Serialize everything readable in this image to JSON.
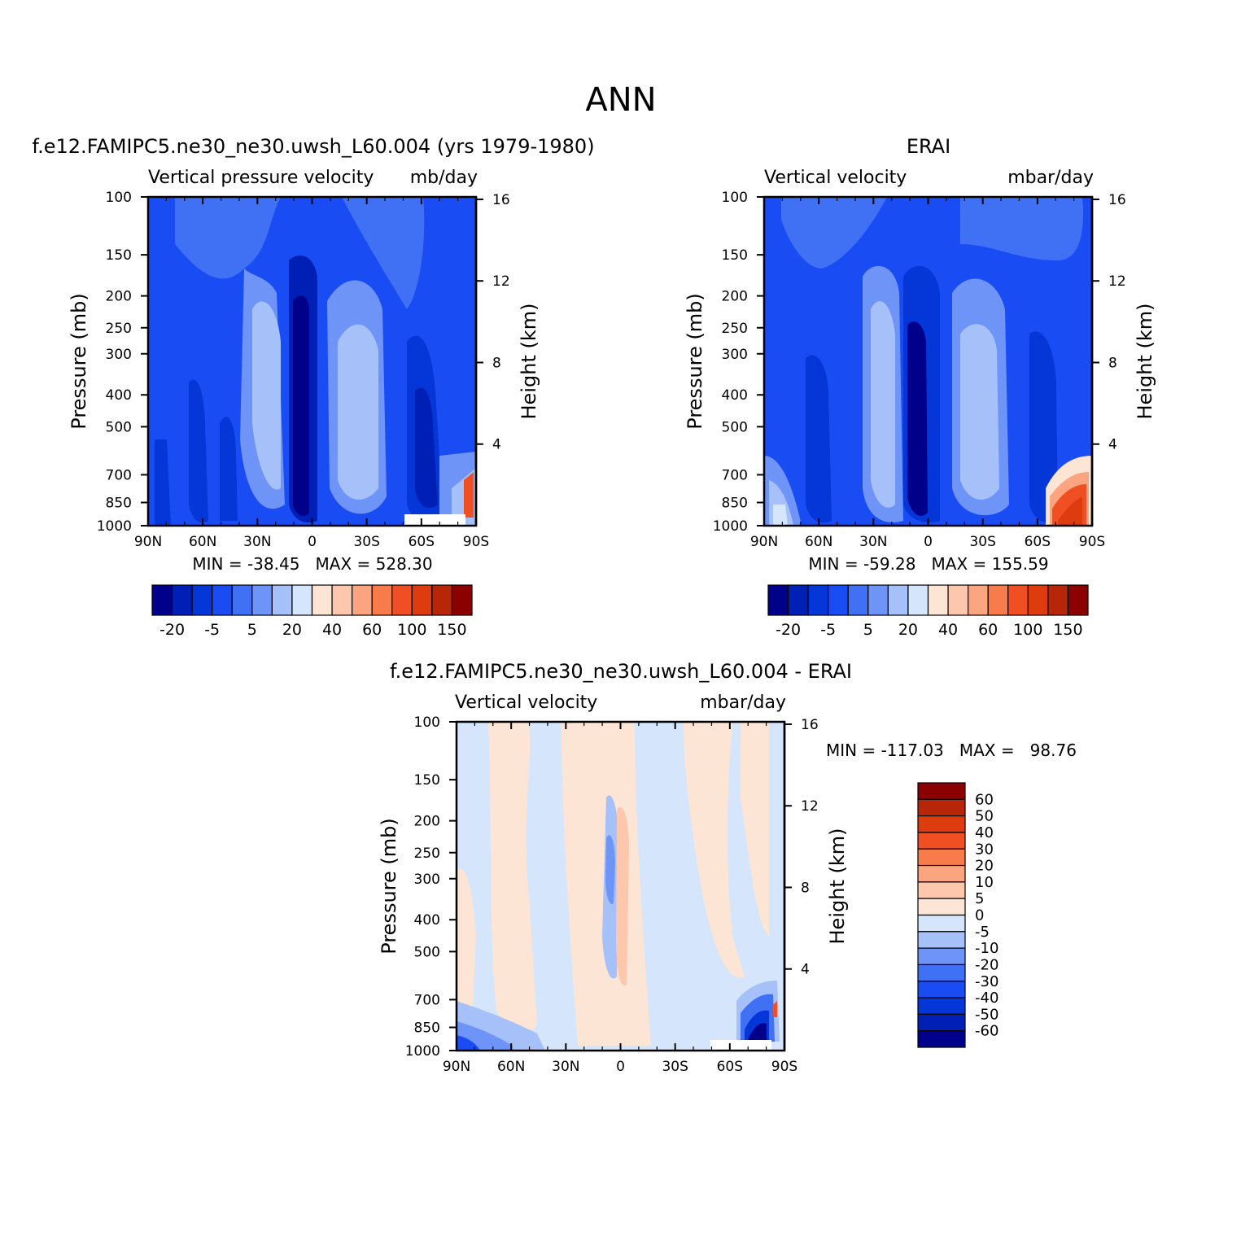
{
  "figure": {
    "main_title": "ANN"
  },
  "chart_data": [
    {
      "type": "heatmap",
      "panel": "model",
      "title": "f.e12.FAMIPC5.ne30_ne30.uwsh_L60.004 (yrs 1979-1980)",
      "left_label": "Vertical pressure velocity",
      "right_label": "mb/day",
      "ylabel": "Pressure (mb)",
      "y2label": "Height (km)",
      "x_ticks": [
        "90N",
        "60N",
        "30N",
        "0",
        "30S",
        "60S",
        "90S"
      ],
      "y_ticks": [
        "100",
        "150",
        "200",
        "250",
        "300",
        "400",
        "500",
        "700",
        "850",
        "1000"
      ],
      "y2_ticks": [
        "16",
        "12",
        "8",
        "4"
      ],
      "xlim": [
        90,
        -90
      ],
      "ylim": [
        1000,
        100
      ],
      "y_scale": "log",
      "stats": "MIN = -38.45   MAX = 528.30",
      "colorbar_labels": [
        "-20",
        "-5",
        "5",
        "20",
        "40",
        "60",
        "100",
        "150"
      ],
      "colorbar_colors": [
        "#00008B",
        "#0020B5",
        "#0536D8",
        "#1A4CF4",
        "#4071F5",
        "#6E94F7",
        "#A6C0FA",
        "#D4E5FC",
        "#FDE5D6",
        "#FCC7AD",
        "#FBA580",
        "#F87B4C",
        "#F04F23",
        "#DE3B0F",
        "#B8260A",
        "#8B0000"
      ],
      "note_values": [
        -20,
        -5,
        5,
        20,
        40,
        60,
        100,
        150
      ]
    },
    {
      "type": "heatmap",
      "panel": "obs",
      "title": "ERAI",
      "left_label": "Vertical velocity",
      "right_label": "mbar/day",
      "ylabel": "Pressure (mb)",
      "y2label": "Height (km)",
      "x_ticks": [
        "90N",
        "60N",
        "30N",
        "0",
        "30S",
        "60S",
        "90S"
      ],
      "y_ticks": [
        "100",
        "150",
        "200",
        "250",
        "300",
        "400",
        "500",
        "700",
        "850",
        "1000"
      ],
      "y2_ticks": [
        "16",
        "12",
        "8",
        "4"
      ],
      "xlim": [
        90,
        -90
      ],
      "ylim": [
        1000,
        100
      ],
      "y_scale": "log",
      "stats": "MIN = -59.28   MAX = 155.59",
      "colorbar_labels": [
        "-20",
        "-5",
        "5",
        "20",
        "40",
        "60",
        "100",
        "150"
      ],
      "colorbar_colors": [
        "#00008B",
        "#0020B5",
        "#0536D8",
        "#1A4CF4",
        "#4071F5",
        "#6E94F7",
        "#A6C0FA",
        "#D4E5FC",
        "#FDE5D6",
        "#FCC7AD",
        "#FBA580",
        "#F87B4C",
        "#F04F23",
        "#DE3B0F",
        "#B8260A",
        "#8B0000"
      ]
    },
    {
      "type": "heatmap",
      "panel": "difference",
      "title": "f.e12.FAMIPC5.ne30_ne30.uwsh_L60.004 - ERAI",
      "left_label": "Vertical velocity",
      "right_label": "mbar/day",
      "ylabel": "Pressure (mb)",
      "y2label": "Height (km)",
      "x_ticks": [
        "90N",
        "60N",
        "30N",
        "0",
        "30S",
        "60S",
        "90S"
      ],
      "y_ticks": [
        "100",
        "150",
        "200",
        "250",
        "300",
        "400",
        "500",
        "700",
        "850",
        "1000"
      ],
      "y2_ticks": [
        "16",
        "12",
        "8",
        "4"
      ],
      "xlim": [
        90,
        -90
      ],
      "ylim": [
        1000,
        100
      ],
      "y_scale": "log",
      "stats": "MIN = -117.03   MAX =   98.76",
      "colorbar_labels": [
        "60",
        "50",
        "40",
        "30",
        "20",
        "10",
        "5",
        "0",
        "-5",
        "-10",
        "-20",
        "-30",
        "-40",
        "-50",
        "-60"
      ],
      "colorbar_colors": [
        "#8B0000",
        "#B8260A",
        "#DE3B0F",
        "#F04F23",
        "#F87B4C",
        "#FBA580",
        "#FCC7AD",
        "#FDE5D6",
        "#D4E5FC",
        "#A6C0FA",
        "#6E94F7",
        "#4071F5",
        "#1A4CF4",
        "#0536D8",
        "#0020B5",
        "#00008B"
      ]
    }
  ]
}
